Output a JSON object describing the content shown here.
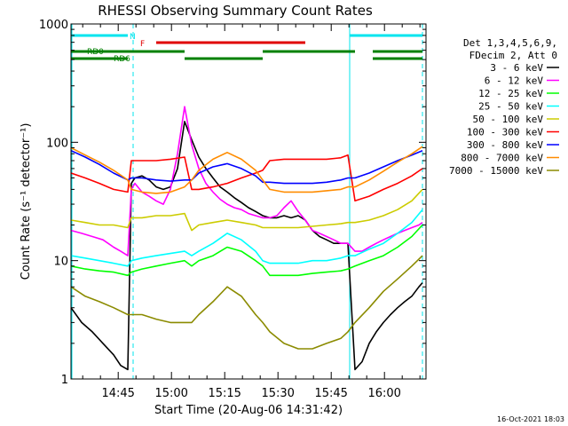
{
  "chart_data": {
    "type": "line",
    "title": "RHESSI Observing Summary Count Rates",
    "xlabel": "Start Time (20-Aug-06 14:31:42)",
    "ylabel": "Count Rate (s⁻¹ detector⁻¹)",
    "yscale": "log",
    "ylim": [
      1,
      1000
    ],
    "xlim_minutes": [
      0,
      100
    ],
    "y_tick_labels": [
      "1",
      "10",
      "100",
      "1000"
    ],
    "x_tick_labels": [
      "14:45",
      "15:00",
      "15:15",
      "15:30",
      "15:45",
      "16:00"
    ],
    "x_tick_minutes": [
      13.3,
      28.3,
      43.3,
      58.3,
      73.3,
      88.3
    ],
    "footer_date": "16-Oct-2021 18:03",
    "legend_header": [
      "Det 1,3,4,5,6,9,",
      "FDecim 2, Att 0"
    ],
    "legend_placement": "right",
    "flags": [
      {
        "label": "N",
        "color": "#00e5ee",
        "intervals": [
          [
            0,
            16
          ],
          [
            78.5,
            99
          ]
        ]
      },
      {
        "label": "F",
        "color": "#e00000",
        "intervals": [
          [
            24,
            66
          ]
        ]
      },
      {
        "label": "RD0",
        "color": "#008000",
        "intervals": [
          [
            0,
            32
          ],
          [
            54,
            80
          ],
          [
            85,
            99
          ]
        ]
      },
      {
        "label": "RD6",
        "color": "#008000",
        "intervals": [
          [
            0,
            16
          ],
          [
            32,
            54
          ],
          [
            85,
            99
          ]
        ]
      }
    ],
    "dashed_lines_minutes": [
      17.5,
      78.5,
      99
    ],
    "series": [
      {
        "name": "3 - 6 keV",
        "color": "#000000",
        "x": [
          0,
          3,
          6,
          9,
          12,
          14,
          16,
          17,
          18,
          20,
          22,
          24,
          26,
          28,
          30,
          32,
          34,
          36,
          38,
          40,
          42,
          44,
          46,
          48,
          50,
          52,
          54,
          56,
          58,
          60,
          62,
          64,
          66,
          68,
          70,
          72,
          74,
          76,
          78,
          80,
          82,
          84,
          86,
          88,
          90,
          92,
          94,
          96,
          98,
          99
        ],
        "y": [
          4,
          3,
          2.5,
          2,
          1.6,
          1.3,
          1.2,
          45,
          50,
          52,
          48,
          42,
          40,
          42,
          60,
          150,
          105,
          75,
          60,
          50,
          42,
          38,
          34,
          31,
          28,
          26,
          24,
          23,
          23,
          24,
          23,
          24,
          22,
          18,
          16,
          15,
          14,
          14,
          14,
          1.2,
          1.4,
          2,
          2.5,
          3,
          3.5,
          4,
          4.5,
          5,
          6,
          6.5
        ]
      },
      {
        "name": "6 - 12 keV",
        "color": "#ff00ff",
        "x": [
          0,
          3,
          6,
          9,
          12,
          14,
          16,
          17,
          18,
          20,
          22,
          24,
          26,
          28,
          30,
          32,
          34,
          36,
          38,
          40,
          42,
          44,
          46,
          48,
          50,
          52,
          54,
          56,
          58,
          60,
          62,
          64,
          66,
          68,
          70,
          72,
          74,
          76,
          78,
          80,
          82,
          84,
          86,
          88,
          90,
          92,
          94,
          96,
          98,
          99
        ],
        "y": [
          18,
          17,
          16,
          15,
          13,
          12,
          11,
          40,
          45,
          38,
          35,
          32,
          30,
          40,
          80,
          200,
          95,
          60,
          45,
          38,
          33,
          30,
          28,
          27,
          25,
          24,
          23,
          23,
          24,
          28,
          32,
          26,
          22,
          18,
          17,
          16,
          15,
          14,
          14,
          12,
          12,
          13,
          14,
          15,
          16,
          17,
          18,
          19,
          20,
          21
        ]
      },
      {
        "name": "12 - 25 keV",
        "color": "#00ff00",
        "x": [
          0,
          4,
          8,
          12,
          16,
          17,
          20,
          24,
          28,
          32,
          34,
          36,
          40,
          44,
          48,
          52,
          54,
          56,
          60,
          64,
          68,
          72,
          76,
          78,
          80,
          84,
          88,
          92,
          96,
          99
        ],
        "y": [
          9,
          8.5,
          8.2,
          8,
          7.5,
          8,
          8.5,
          9,
          9.5,
          10,
          9,
          10,
          11,
          13,
          12,
          10,
          9,
          7.5,
          7.5,
          7.5,
          7.8,
          8,
          8.2,
          8.5,
          9,
          10,
          11,
          13,
          16,
          20
        ]
      },
      {
        "name": "25 - 50 keV",
        "color": "#00ffff",
        "x": [
          0,
          4,
          8,
          12,
          16,
          17,
          20,
          24,
          28,
          32,
          34,
          36,
          40,
          44,
          48,
          52,
          54,
          56,
          60,
          64,
          68,
          72,
          76,
          78,
          80,
          84,
          88,
          92,
          96,
          99
        ],
        "y": [
          11,
          10.5,
          10,
          9.5,
          9,
          10,
          10.5,
          11,
          11.5,
          12,
          11,
          12,
          14,
          17,
          15,
          12,
          10,
          9.5,
          9.5,
          9.5,
          10,
          10,
          10.5,
          11,
          11,
          12.5,
          14,
          17,
          21,
          27
        ]
      },
      {
        "name": "50 - 100 keV",
        "color": "#cccc00",
        "x": [
          0,
          4,
          8,
          12,
          16,
          17,
          20,
          24,
          28,
          32,
          34,
          36,
          40,
          44,
          48,
          52,
          54,
          56,
          60,
          64,
          68,
          72,
          76,
          78,
          80,
          84,
          88,
          92,
          96,
          99
        ],
        "y": [
          22,
          21,
          20,
          20,
          19,
          23,
          23,
          24,
          24,
          25,
          18,
          20,
          21,
          22,
          21,
          20,
          19,
          19,
          19,
          19,
          19.5,
          20,
          20.5,
          21,
          21,
          22,
          24,
          27,
          32,
          40
        ]
      },
      {
        "name": "100 - 300 keV",
        "color": "#ff0000",
        "x": [
          0,
          4,
          8,
          12,
          16,
          17,
          20,
          24,
          28,
          32,
          34,
          36,
          40,
          44,
          48,
          52,
          54,
          56,
          60,
          64,
          68,
          72,
          76,
          78,
          80,
          84,
          88,
          92,
          96,
          99
        ],
        "y": [
          55,
          50,
          45,
          40,
          38,
          70,
          70,
          70,
          72,
          75,
          40,
          40,
          42,
          45,
          50,
          55,
          58,
          70,
          72,
          72,
          72,
          72,
          74,
          78,
          32,
          35,
          40,
          45,
          52,
          60
        ]
      },
      {
        "name": "300 - 800 keV",
        "color": "#0000ff",
        "x": [
          0,
          4,
          8,
          12,
          16,
          17,
          20,
          24,
          28,
          32,
          34,
          36,
          40,
          44,
          48,
          52,
          54,
          56,
          60,
          64,
          68,
          72,
          76,
          78,
          80,
          84,
          88,
          92,
          96,
          99
        ],
        "y": [
          85,
          75,
          65,
          55,
          48,
          50,
          50,
          48,
          47,
          48,
          48,
          55,
          62,
          66,
          60,
          52,
          46,
          46,
          45,
          45,
          45,
          46,
          48,
          50,
          50,
          55,
          62,
          70,
          78,
          85
        ]
      },
      {
        "name": "800 - 7000 keV",
        "color": "#ff8c00",
        "x": [
          0,
          4,
          8,
          12,
          16,
          17,
          20,
          24,
          28,
          32,
          34,
          36,
          40,
          44,
          48,
          52,
          54,
          56,
          60,
          64,
          68,
          72,
          76,
          78,
          80,
          84,
          88,
          92,
          96,
          99
        ],
        "y": [
          90,
          78,
          68,
          58,
          48,
          40,
          38,
          37,
          38,
          42,
          48,
          58,
          72,
          82,
          72,
          58,
          48,
          40,
          38,
          38,
          38,
          39,
          40,
          42,
          42,
          48,
          57,
          68,
          80,
          92
        ]
      },
      {
        "name": "7000 - 15000 keV",
        "color": "#8b8b00",
        "x": [
          0,
          4,
          8,
          12,
          16,
          17,
          20,
          24,
          28,
          32,
          34,
          36,
          40,
          44,
          48,
          52,
          54,
          56,
          60,
          64,
          68,
          72,
          76,
          78,
          80,
          84,
          88,
          92,
          96,
          99
        ],
        "y": [
          6,
          5,
          4.5,
          4,
          3.5,
          3.5,
          3.5,
          3.2,
          3,
          3,
          3,
          3.5,
          4.5,
          6,
          5,
          3.5,
          3,
          2.5,
          2,
          1.8,
          1.8,
          2,
          2.2,
          2.5,
          3,
          4,
          5.5,
          7,
          9,
          11
        ]
      }
    ]
  }
}
